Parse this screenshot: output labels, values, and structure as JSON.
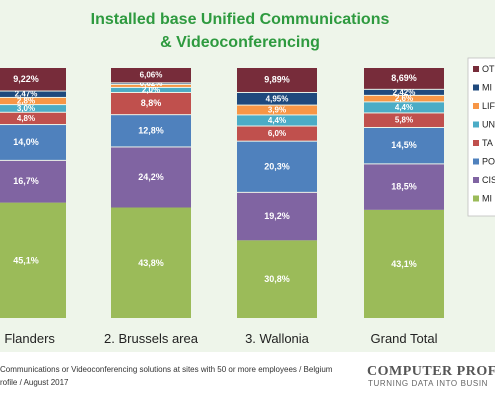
{
  "chart_data": {
    "type": "stacked-bar",
    "title_lines": [
      "Installed base Unified Communications",
      "& Videoconferencing"
    ],
    "categories": [
      ". Flanders",
      "2. Brussels area",
      "3. Wallonia",
      "Grand Total"
    ],
    "ylim": [
      0,
      100
    ],
    "legend_position": "right",
    "series": [
      {
        "name": "MI",
        "color": "#9bbb59",
        "values": [
          45.1,
          43.8,
          30.8,
          43.1
        ],
        "labels": [
          "45,1%",
          "43,8%",
          "30,8%",
          "43,1%"
        ]
      },
      {
        "name": "CIS",
        "color": "#8064a2",
        "values": [
          16.7,
          24.2,
          19.2,
          18.5
        ],
        "labels": [
          "16,7%",
          "24,2%",
          "19,2%",
          "18,5%"
        ]
      },
      {
        "name": "PO",
        "color": "#4f81bd",
        "values": [
          14.0,
          12.8,
          20.3,
          14.5
        ],
        "labels": [
          "14,0%",
          "12,8%",
          "20,3%",
          "14,5%"
        ]
      },
      {
        "name": "TA",
        "color": "#c0504d",
        "values": [
          4.8,
          8.8,
          6.0,
          5.8
        ],
        "labels": [
          "4,8%",
          "8,8%",
          "6,0%",
          "5,8%"
        ]
      },
      {
        "name": "UN",
        "color": "#4bacc6",
        "values": [
          3.0,
          2.0,
          4.4,
          4.4
        ],
        "labels": [
          "3,0%",
          "2,0%",
          "4,4%",
          "4,4%"
        ]
      },
      {
        "name": "LIF",
        "color": "#f79646",
        "values": [
          2.8,
          1.2,
          3.9,
          2.6
        ],
        "labels": [
          "2,8%",
          "",
          "3,9%",
          "2,6%"
        ]
      },
      {
        "name": "MI",
        "color": "#1f497d",
        "values": [
          2.5,
          0.6,
          5.0,
          2.4
        ],
        "labels": [
          "2,47%",
          "0,62%",
          "4,95%",
          "2,42%"
        ]
      },
      {
        "name": "OT",
        "color": "#772c3a",
        "values": [
          9.2,
          6.1,
          9.9,
          8.7
        ],
        "labels": [
          "9,22%",
          "6,06%",
          "9,89%",
          "8,69%"
        ]
      }
    ]
  },
  "footer": {
    "line1": "Communications or Videoconferencing solutions at sites with 50 or more employees / Belgium",
    "line2": "rofile / August 2017"
  },
  "brand": {
    "name": "COMPUTER PROFI",
    "tagline": "TURNING DATA INTO BUSIN"
  }
}
